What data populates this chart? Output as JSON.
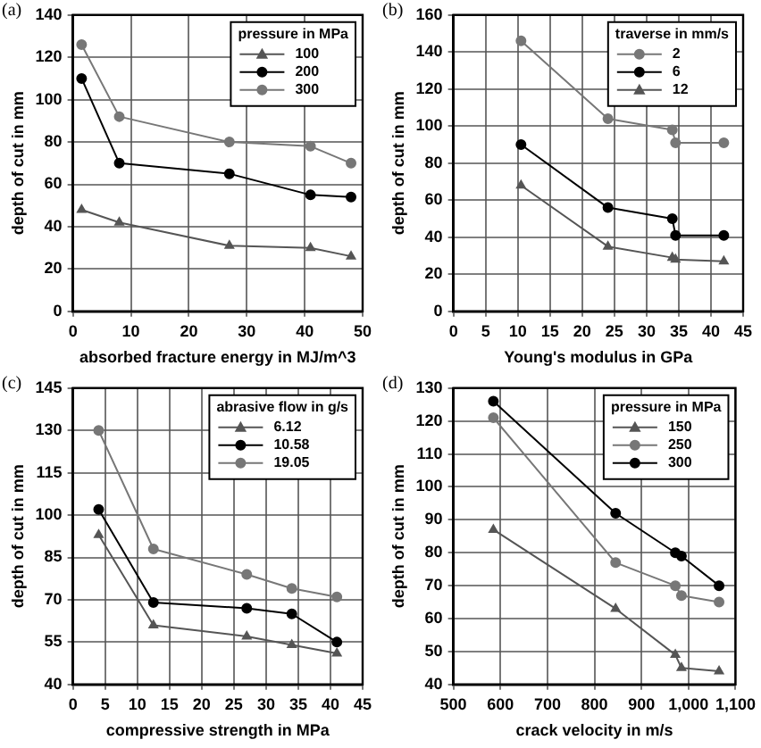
{
  "chart_data": [
    {
      "type": "line",
      "title": "(a)",
      "xlabel": "absorbed fracture energy in MJ/m^3",
      "ylabel": "depth of cut in mm",
      "legend_title": "pressure in MPa",
      "x": [
        1.5,
        8,
        27,
        41,
        48
      ],
      "xlim": [
        0,
        50
      ],
      "xticks": [
        0,
        10,
        20,
        30,
        40,
        50
      ],
      "ylim": [
        0,
        140
      ],
      "yticks": [
        0,
        20,
        40,
        60,
        80,
        100,
        120,
        140
      ],
      "grid": true,
      "legend": "top right",
      "line_style": "solid",
      "series": [
        {
          "name": "100",
          "color": "#555555",
          "marker": "triangle",
          "values": [
            48,
            42,
            31,
            30,
            26
          ]
        },
        {
          "name": "200",
          "color": "#000000",
          "marker": "circle",
          "values": [
            110,
            70,
            65,
            55,
            54
          ]
        },
        {
          "name": "300",
          "color": "#777777",
          "marker": "circle",
          "values": [
            126,
            92,
            80,
            78,
            70
          ]
        }
      ]
    },
    {
      "type": "line",
      "title": "(b)",
      "xlabel": "Young's modulus in GPa",
      "ylabel": "depth of cut in mm",
      "legend_title": "traverse in mm/s",
      "x": [
        10.5,
        24,
        34,
        34.5,
        42
      ],
      "xlim": [
        0,
        45
      ],
      "xticks": [
        0,
        5,
        10,
        15,
        20,
        25,
        30,
        35,
        40,
        45
      ],
      "ylim": [
        0,
        160
      ],
      "yticks": [
        0,
        20,
        40,
        60,
        80,
        100,
        120,
        140,
        160
      ],
      "grid": true,
      "legend": "top right",
      "line_style": "solid",
      "series": [
        {
          "name": "2",
          "color": "#777777",
          "marker": "circle",
          "values": [
            146,
            104,
            98,
            91,
            91
          ]
        },
        {
          "name": "6",
          "color": "#000000",
          "marker": "circle",
          "values": [
            90,
            56,
            50,
            41,
            41
          ]
        },
        {
          "name": "12",
          "color": "#555555",
          "marker": "triangle",
          "values": [
            68,
            35,
            29,
            28,
            27
          ]
        }
      ]
    },
    {
      "type": "line",
      "title": "(c)",
      "xlabel": "compressive strength in MPa",
      "ylabel": "depth of cut in mm",
      "legend_title": "abrasive flow in g/s",
      "x": [
        4,
        12.5,
        27,
        34,
        41
      ],
      "xlim": [
        0,
        45
      ],
      "xticks": [
        0,
        5,
        10,
        15,
        20,
        25,
        30,
        35,
        40,
        45
      ],
      "ylim": [
        40,
        145
      ],
      "yticks": [
        40,
        55,
        70,
        85,
        100,
        115,
        130,
        145
      ],
      "grid": true,
      "legend": "top right",
      "line_style": "solid",
      "series": [
        {
          "name": "6.12",
          "color": "#555555",
          "marker": "triangle",
          "values": [
            93,
            61,
            57,
            54,
            51
          ]
        },
        {
          "name": "10.58",
          "color": "#000000",
          "marker": "circle",
          "values": [
            102,
            69,
            67,
            65,
            55
          ]
        },
        {
          "name": "19.05",
          "color": "#777777",
          "marker": "circle",
          "values": [
            130,
            88,
            79,
            74,
            71
          ]
        }
      ]
    },
    {
      "type": "line",
      "title": "(d)",
      "xlabel": "crack velocity in m/s",
      "ylabel": "depth of cut in mm",
      "legend_title": "pressure in MPa",
      "x": [
        585,
        845,
        972,
        985,
        1065
      ],
      "xlim": [
        500,
        1100
      ],
      "xticks": [
        500,
        600,
        700,
        800,
        900,
        {
          "value": 1000,
          "label": "1,000"
        },
        {
          "value": 1100,
          "label": "1,100"
        }
      ],
      "ylim": [
        40,
        130
      ],
      "yticks": [
        40,
        50,
        60,
        70,
        80,
        90,
        100,
        110,
        120,
        130
      ],
      "grid": true,
      "legend": "top right",
      "line_style": "solid",
      "series": [
        {
          "name": "150",
          "color": "#555555",
          "marker": "triangle",
          "values": [
            87,
            63,
            49,
            45,
            44
          ]
        },
        {
          "name": "250",
          "color": "#777777",
          "marker": "circle",
          "values": [
            121,
            77,
            70,
            67,
            65
          ]
        },
        {
          "name": "300",
          "color": "#000000",
          "marker": "circle",
          "values": [
            126,
            92,
            80,
            79,
            70
          ]
        }
      ]
    }
  ]
}
